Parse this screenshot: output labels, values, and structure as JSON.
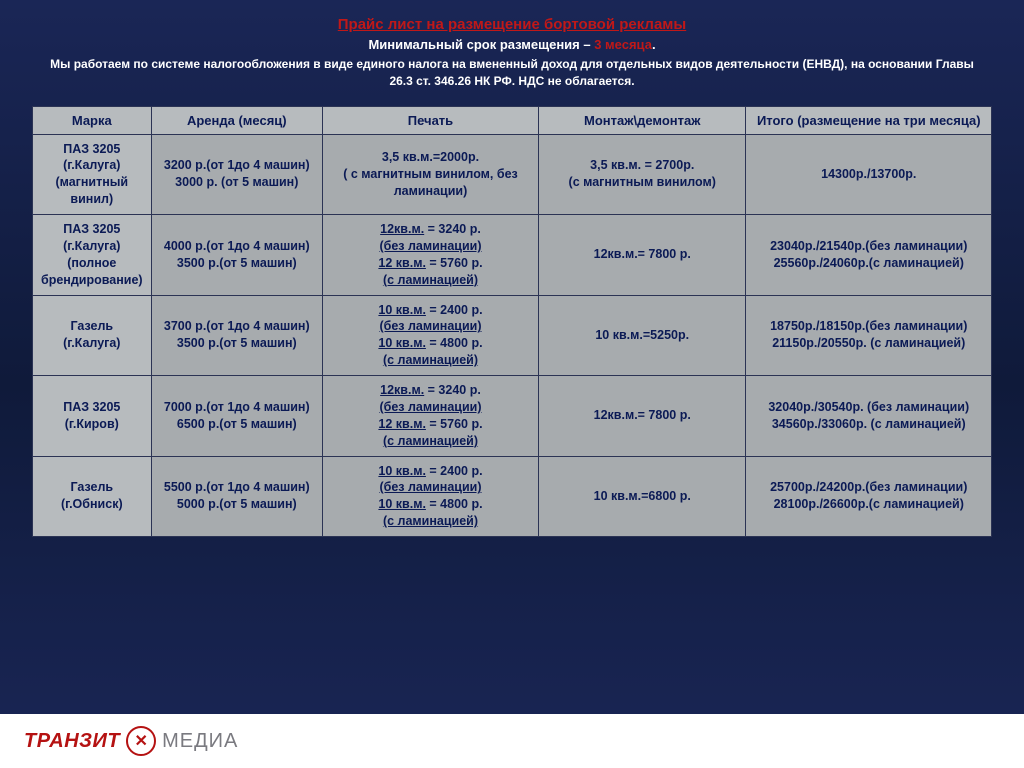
{
  "header": {
    "title": "Прайс лист на размещение бортовой рекламы",
    "subtitle_pre": "Минимальный срок размещения – ",
    "subtitle_highlight": "3 месяца",
    "subtitle_post": ".",
    "desc": "Мы работаем по системе налогообложения в виде единого налога на вмененный доход для отдельных видов деятельности (ЕНВД), на основании Главы 26.3 ст. 346.26 НК РФ.  НДС не облагается."
  },
  "columns": {
    "marka": "Марка",
    "arenda": "Аренда (месяц)",
    "print": "Печать",
    "mount": "Монтаж\\демонтаж",
    "total": "Итого (размещение на три месяца)"
  },
  "rows": [
    {
      "marka": "ПАЗ 3205 (г.Калуга) (магнитный винил)",
      "arenda": "3200 р.(от 1до 4 машин)\n3000 р. (от 5 машин)",
      "print_plain": "3,5 кв.м.=2000р.\n( с магнитным винилом, без ламинации)",
      "mount": "3,5 кв.м. = 2700р.\n(с магнитным винилом)",
      "total": "14300р./13700р."
    },
    {
      "marka": "ПАЗ 3205 (г.Калуга) (полное брендирование)",
      "arenda": "4000 р.(от 1до 4 машин)\n3500 р.(от 5 машин)",
      "print_u1": "12кв.м.",
      "print_u1v": " = 3240 р.",
      "print_u1s": "(без ламинации)",
      "print_u2": "12 кв.м.",
      "print_u2v": " = 5760 р.",
      "print_u2s": "(с ламинацией)",
      "mount": "12кв.м.= 7800 р.",
      "total": "23040р./21540р.(без ламинации)\n25560р./24060р.(с ламинацией)"
    },
    {
      "marka": "Газель (г.Калуга)",
      "arenda": "3700 р.(от 1до 4 машин)\n3500 р.(от 5 машин)",
      "print_u1": "10 кв.м.",
      "print_u1v": " = 2400 р.",
      "print_u1s": "(без ламинации)",
      "print_u2": "10 кв.м.",
      "print_u2v": " = 4800 р.",
      "print_u2s": "(с ламинацией)",
      "mount": "10 кв.м.=5250р.",
      "total": "18750р./18150р.(без ламинации)\n21150р./20550р. (с ламинацией)"
    },
    {
      "marka": "ПАЗ 3205 (г.Киров)",
      "arenda": "7000 р.(от 1до 4 машин)\n6500 р.(от 5 машин)",
      "print_u1": "12кв.м.",
      "print_u1v": " = 3240 р.",
      "print_u1s": "(без ламинации)",
      "print_u2": "12 кв.м.",
      "print_u2v": " = 5760 р.",
      "print_u2s": "(с ламинацией)",
      "mount": "12кв.м.= 7800 р.",
      "total": "32040р./30540р. (без ламинации)\n34560р./33060р. (с ламинацией)"
    },
    {
      "marka": "Газель (г.Обниск)",
      "arenda": "5500 р.(от 1до 4 машин)\n5000 р.(от 5 машин)",
      "print_u1": "10 кв.м.",
      "print_u1v": " = 2400 р.",
      "print_u1s": "(без ламинации)",
      "print_u2": "10 кв.м.",
      "print_u2v": " = 4800 р.",
      "print_u2s": "(с ламинацией)",
      "mount": "10 кв.м.=6800 р.",
      "total": "25700р./24200р.(без ламинации)\n28100р./26600р.(с ламинацией)"
    }
  ],
  "footer": {
    "logo1": "ТРАНЗИТ",
    "logo2": "МЕДИА"
  }
}
